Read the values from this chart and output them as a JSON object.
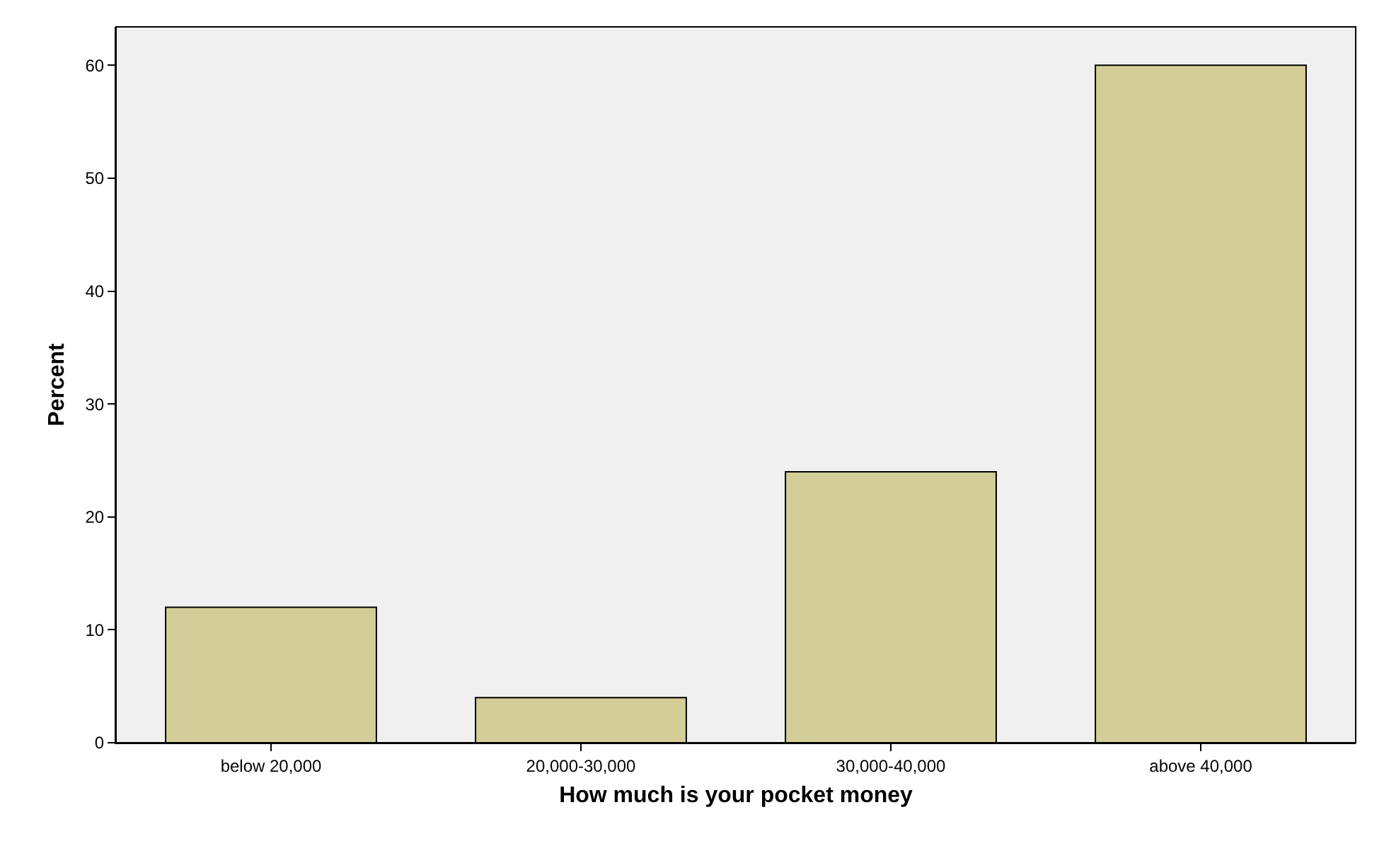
{
  "chart_data": {
    "type": "bar",
    "xlabel": "How much is your pocket money",
    "ylabel": "Percent",
    "categories": [
      "below 20,000",
      "20,000-30,000",
      "30,000-40,000",
      "above 40,000"
    ],
    "values": [
      12,
      4,
      24,
      60
    ],
    "color": "#d3ce97",
    "ylim": [
      0,
      63.4
    ],
    "yticks": [
      0,
      10,
      20,
      30,
      40,
      50,
      60
    ],
    "grid": false
  }
}
